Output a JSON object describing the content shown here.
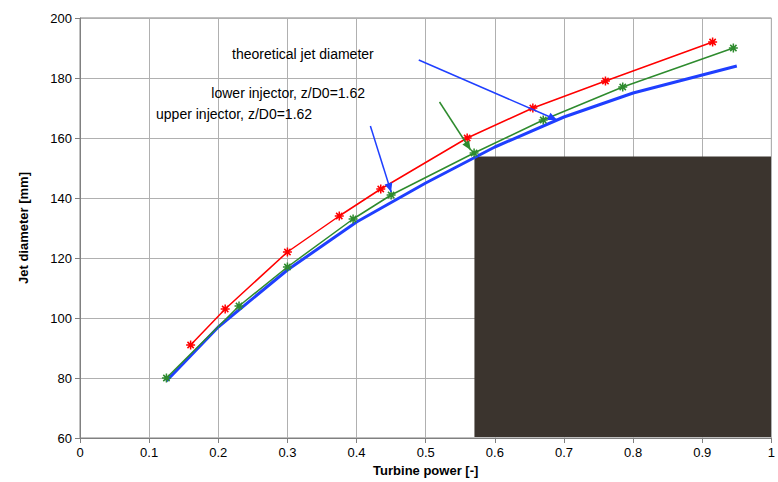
{
  "chart_data": {
    "type": "line",
    "x_label": "Turbine power [-]",
    "y_label": "Jet diameter [mm]",
    "xlim": [
      0,
      1
    ],
    "xticks": [
      0,
      0.1,
      0.2,
      0.3,
      0.4,
      0.5,
      0.6,
      0.7,
      0.8,
      0.9,
      1
    ],
    "ylim": [
      60,
      200
    ],
    "yticks": [
      60,
      80,
      100,
      120,
      140,
      160,
      180,
      200
    ],
    "grid": true,
    "series": [
      {
        "name": "upper injector, z/D0=1.62",
        "color": "#ff0000",
        "marker": "star",
        "line_style": "solid",
        "x": [
          0.16,
          0.21,
          0.3,
          0.375,
          0.435,
          0.56,
          0.655,
          0.76,
          0.915
        ],
        "values": [
          91,
          103,
          122,
          134,
          143,
          160,
          170,
          179,
          192
        ]
      },
      {
        "name": "lower injector, z/D0=1.62",
        "color": "#2e8b2e",
        "marker": "star",
        "line_style": "solid",
        "x": [
          0.125,
          0.23,
          0.3,
          0.395,
          0.45,
          0.57,
          0.67,
          0.785,
          0.945
        ],
        "values": [
          80,
          104,
          117,
          133,
          141,
          155,
          166,
          177,
          190
        ]
      },
      {
        "name": "theoretical jet diameter",
        "color": "#1f3fff",
        "marker": "none",
        "line_style": "solid",
        "x": [
          0.125,
          0.2,
          0.3,
          0.4,
          0.5,
          0.6,
          0.7,
          0.8,
          0.9,
          0.95
        ],
        "values": [
          79,
          97,
          116,
          132,
          145,
          157,
          167,
          175,
          181,
          184
        ]
      }
    ],
    "annotations": [
      {
        "text": "theoretical jet diameter",
        "x": 0.22,
        "y": 188,
        "arrow_from": [
          0.49,
          186
        ],
        "arrow_to": [
          0.69,
          166
        ],
        "color": "#1f3fff"
      },
      {
        "text": "lower injector, z/D0=1.62",
        "x": 0.19,
        "y": 175,
        "arrow_from": [
          0.52,
          172
        ],
        "arrow_to": [
          0.565,
          156
        ],
        "color": "#2e8b2e"
      },
      {
        "text": "upper injector, z/D0=1.62",
        "x": 0.11,
        "y": 168,
        "arrow_from": [
          0.42,
          164
        ],
        "arrow_to": [
          0.45,
          142
        ],
        "color": "#1f3fff"
      }
    ]
  }
}
